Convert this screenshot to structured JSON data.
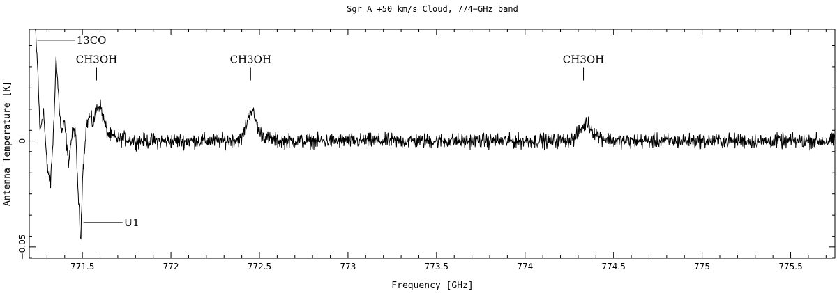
{
  "chart_data": {
    "type": "line",
    "title": "Sgr A  +50 km/s Cloud, 774−GHz band",
    "xlabel": "Frequency  [GHz]",
    "ylabel": "Antenna Temperature [K]",
    "xlim": [
      771.2,
      775.75
    ],
    "ylim": [
      -0.0553,
      0.0527
    ],
    "x_ticks": [
      771.5,
      772,
      772.5,
      773,
      773.5,
      774,
      774.5,
      775,
      775.5
    ],
    "x_tick_labels": [
      "771.5",
      "772",
      "772.5",
      "773",
      "773.5",
      "774",
      "774.5",
      "775",
      "775.5"
    ],
    "y_ticks": [
      -0.05,
      0
    ],
    "y_tick_labels": [
      "−0.05",
      "0"
    ],
    "grid": false,
    "noise_rms": 0.0025,
    "line_color": "#000000",
    "series": [
      {
        "x": [
          771.23,
          771.25,
          771.26,
          771.28,
          771.3,
          771.32,
          771.34,
          771.35,
          771.36,
          771.38,
          771.4,
          771.42,
          771.44,
          771.46,
          771.47,
          771.48,
          771.49,
          771.5,
          771.52,
          771.54,
          771.56,
          771.58,
          771.6,
          771.62,
          771.64,
          771.66,
          771.7,
          771.75,
          771.8,
          772.3,
          772.4,
          772.43,
          772.45,
          772.47,
          772.5,
          772.55,
          772.6,
          774.2,
          774.28,
          774.32,
          774.35,
          774.38,
          774.42,
          774.5,
          775.75
        ],
        "y": [
          0.06,
          0.03,
          0.004,
          0.015,
          -0.012,
          -0.02,
          0.01,
          0.04,
          0.028,
          0.004,
          0.008,
          -0.01,
          0.002,
          0.006,
          -0.014,
          -0.03,
          -0.048,
          -0.018,
          0.006,
          0.012,
          0.008,
          0.015,
          0.017,
          0.01,
          0.004,
          0.002,
          0.001,
          0.001,
          0.0,
          0.0,
          0.001,
          0.009,
          0.015,
          0.012,
          0.004,
          0.001,
          0.0,
          0.0,
          0.001,
          0.006,
          0.009,
          0.005,
          0.002,
          0.0,
          0.0
        ]
      }
    ],
    "annotations": [
      {
        "text": "13CO",
        "x": 771.23,
        "y": 0.0475
      },
      {
        "text": "U1",
        "x": 771.49,
        "y": -0.0385
      },
      {
        "text": "CH3OH",
        "x": 771.58,
        "y": 0.0302
      },
      {
        "text": "CH3OH",
        "x": 772.45,
        "y": 0.0302
      },
      {
        "text": "CH3OH",
        "x": 774.33,
        "y": 0.0302
      }
    ]
  }
}
